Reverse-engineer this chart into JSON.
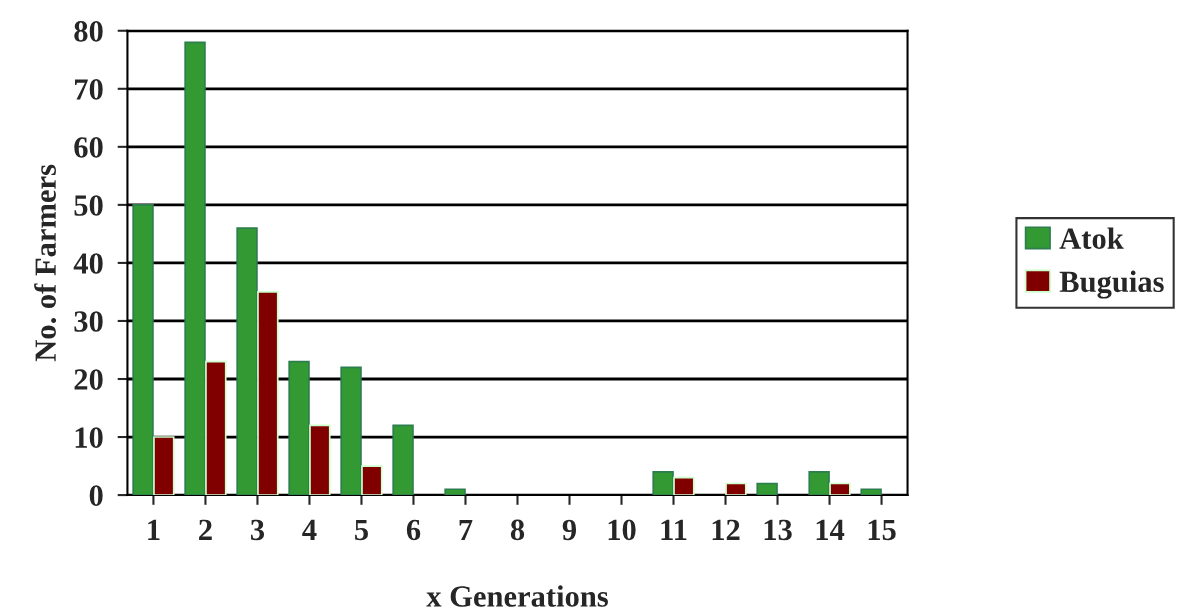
{
  "chart_data": {
    "type": "bar",
    "xlabel": "x Generations",
    "ylabel": "No. of Farmers",
    "categories": [
      "1",
      "2",
      "3",
      "4",
      "5",
      "6",
      "7",
      "8",
      "9",
      "10",
      "11",
      "12",
      "13",
      "14",
      "15"
    ],
    "series": [
      {
        "name": "Atok",
        "color": "#339933",
        "values": [
          50,
          78,
          46,
          23,
          22,
          12,
          1,
          0,
          0,
          0,
          4,
          0,
          2,
          4,
          1
        ]
      },
      {
        "name": "Buguias",
        "color": "#800000",
        "values": [
          10,
          23,
          35,
          12,
          5,
          0,
          0,
          0,
          0,
          0,
          3,
          2,
          0,
          2,
          0
        ]
      }
    ],
    "ylim": [
      0,
      80
    ],
    "yticks": [
      0,
      10,
      20,
      30,
      40,
      50,
      60,
      70,
      80
    ],
    "grid": "y",
    "legend": "right"
  }
}
